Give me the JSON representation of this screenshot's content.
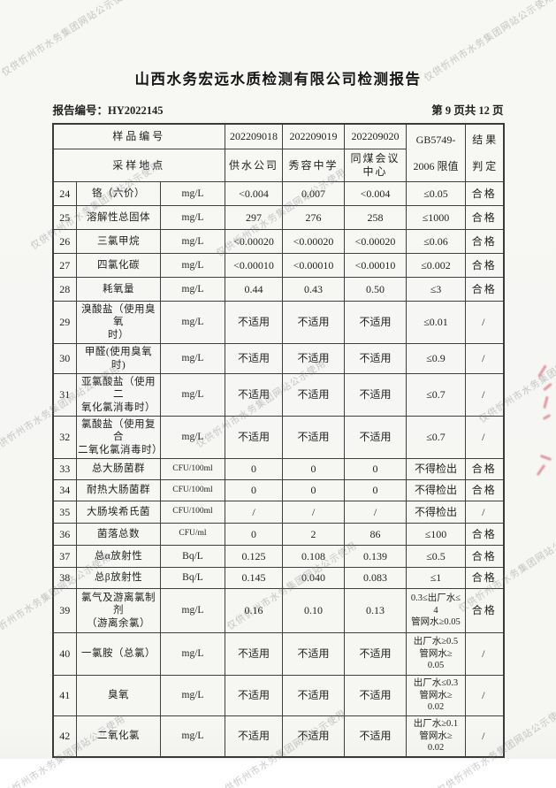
{
  "page": {
    "title": "山西水务宏远水质检测有限公司检测报告",
    "report_no": "报告编号：HY2022145",
    "page_indicator": "第 9 页共 12 页"
  },
  "watermark": {
    "text": "仅供忻州市水务集团网站公示使用"
  },
  "table": {
    "header": {
      "sample_id_label": "样品编号",
      "sample_location_label": "采样地点",
      "sample_ids": [
        "202209018",
        "202209019",
        "202209020"
      ],
      "sample_locations": [
        "供水公司",
        "秀容中学",
        "同煤会议中心"
      ],
      "limit_col_line1": "GB5749-",
      "limit_col_line2": "2006 限值",
      "result_col_line1": "结 果",
      "result_col_line2": "判 定"
    },
    "rows": [
      {
        "no": "24",
        "name": "铬（六价）",
        "unit": "mg/L",
        "v1": "<0.004",
        "v2": "0.007",
        "v3": "<0.004",
        "limit": "≤0.05",
        "result": "合格"
      },
      {
        "no": "25",
        "name": "溶解性总固体",
        "unit": "mg/L",
        "v1": "297",
        "v2": "276",
        "v3": "258",
        "limit": "≤1000",
        "result": "合格"
      },
      {
        "no": "26",
        "name": "三氯甲烷",
        "unit": "mg/L",
        "v1": "<0.00020",
        "v2": "<0.00020",
        "v3": "<0.00020",
        "limit": "≤0.06",
        "result": "合格"
      },
      {
        "no": "27",
        "name": "四氯化碳",
        "unit": "mg/L",
        "v1": "<0.00010",
        "v2": "<0.00010",
        "v3": "<0.00010",
        "limit": "≤0.002",
        "result": "合格"
      },
      {
        "no": "28",
        "name": "耗氧量",
        "unit": "mg/L",
        "v1": "0.44",
        "v2": "0.43",
        "v3": "0.50",
        "limit": "≤3",
        "result": "合格"
      },
      {
        "no": "29",
        "name": "溴酸盐（使用臭氧\n时）",
        "unit": "mg/L",
        "v1": "不适用",
        "v2": "不适用",
        "v3": "不适用",
        "limit": "≤0.01",
        "result": "/"
      },
      {
        "no": "30",
        "name": "甲醛(使用臭氧时)",
        "unit": "mg/L",
        "v1": "不适用",
        "v2": "不适用",
        "v3": "不适用",
        "limit": "≤0.9",
        "result": "/"
      },
      {
        "no": "31",
        "name": "亚氯酸盐（使用二\n氧化氯消毒时）",
        "unit": "mg/L",
        "v1": "不适用",
        "v2": "不适用",
        "v3": "不适用",
        "limit": "≤0.7",
        "result": "/"
      },
      {
        "no": "32",
        "name": "氯酸盐（使用复合\n二氧化氯消毒时）",
        "unit": "mg/L",
        "v1": "不适用",
        "v2": "不适用",
        "v3": "不适用",
        "limit": "≤0.7",
        "result": "/"
      },
      {
        "no": "33",
        "name": "总大肠菌群",
        "unit": "CFU/100ml",
        "v1": "0",
        "v2": "0",
        "v3": "0",
        "limit": "不得检出",
        "result": "合格"
      },
      {
        "no": "34",
        "name": "耐热大肠菌群",
        "unit": "CFU/100ml",
        "v1": "0",
        "v2": "0",
        "v3": "0",
        "limit": "不得检出",
        "result": "合格"
      },
      {
        "no": "35",
        "name": "大肠埃希氏菌",
        "unit": "CFU/100ml",
        "v1": "/",
        "v2": "/",
        "v3": "/",
        "limit": "不得检出",
        "result": "/"
      },
      {
        "no": "36",
        "name": "菌落总数",
        "unit": "CFU/ml",
        "v1": "0",
        "v2": "2",
        "v3": "86",
        "limit": "≤100",
        "result": "合格"
      },
      {
        "no": "37",
        "name": "总α放射性",
        "unit": "Bq/L",
        "v1": "0.125",
        "v2": "0.108",
        "v3": "0.139",
        "limit": "≤0.5",
        "result": "合格"
      },
      {
        "no": "38",
        "name": "总β放射性",
        "unit": "Bq/L",
        "v1": "0.145",
        "v2": "0.040",
        "v3": "0.083",
        "limit": "≤1",
        "result": "合格"
      },
      {
        "no": "39",
        "name": "氯气及游离氯制剂\n（游离余氯）",
        "unit": "mg/L",
        "v1": "0.16",
        "v2": "0.10",
        "v3": "0.13",
        "limit": "0.3≤出厂水≤\n4\n管网水≥0.05",
        "result": "合格"
      },
      {
        "no": "40",
        "name": "一氯胺（总氯）",
        "unit": "mg/L",
        "v1": "不适用",
        "v2": "不适用",
        "v3": "不适用",
        "limit": "出厂水≥0.5\n管网水≥\n0.05",
        "result": "/"
      },
      {
        "no": "41",
        "name": "臭氧",
        "unit": "mg/L",
        "v1": "不适用",
        "v2": "不适用",
        "v3": "不适用",
        "limit": "出厂水≤0.3\n管网水≥\n0.02",
        "result": "/"
      },
      {
        "no": "42",
        "name": "二氧化氯",
        "unit": "mg/L",
        "v1": "不适用",
        "v2": "不适用",
        "v3": "不适用",
        "limit": "出厂水≥0.1\n管网水≥\n0.02",
        "result": "/"
      }
    ]
  }
}
